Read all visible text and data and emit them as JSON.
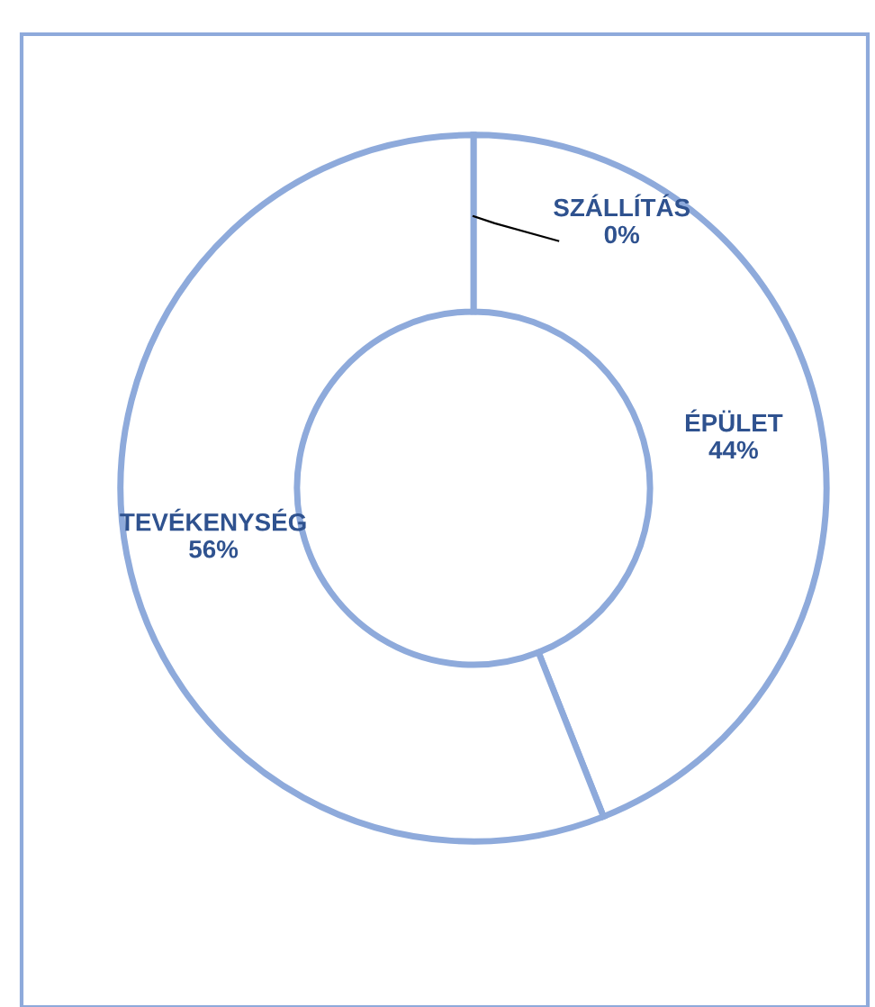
{
  "chart_data": {
    "type": "donut",
    "categories": [
      "SZÁLLÍTÁS",
      "ÉPÜLET",
      "TEVÉKENYSÉG"
    ],
    "values": [
      0,
      44,
      56
    ],
    "value_labels": [
      "0%",
      "44%",
      "56%"
    ],
    "colors": [
      "#ffffff",
      "#ffffff",
      "#ffffff"
    ],
    "color": "#8eaadb",
    "legend": false
  }
}
